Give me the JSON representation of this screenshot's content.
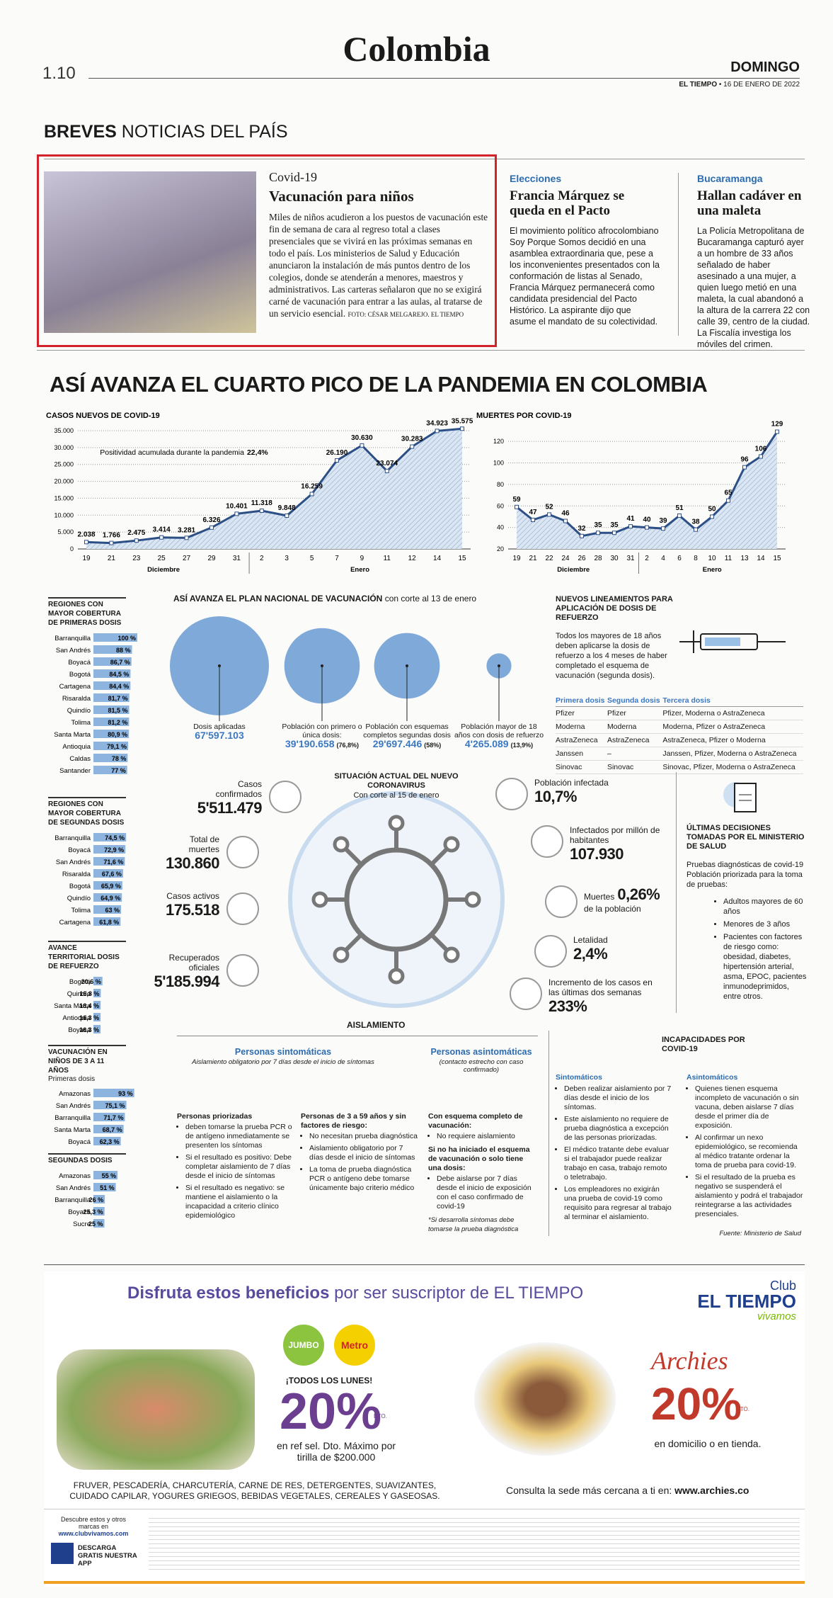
{
  "header": {
    "page": "1.10",
    "section": "Colombia",
    "day": "DOMINGO",
    "paper": "EL TIEMPO",
    "date": "16 DE ENERO DE 2022"
  },
  "breves": {
    "label": "BREVES",
    "sub": "NOTICIAS DEL PAÍS"
  },
  "briefs": [
    {
      "kicker": "Covid-19",
      "title": "Vacunación para niños",
      "body": "Miles de niños acudieron a los puestos de vacunación este fin de semana de cara al regreso total a clases presenciales que se vivirá en las próximas semanas en todo el país. Los ministerios de Salud y Educación anunciaron la instalación de más puntos dentro de los colegios, donde se atenderán a menores, maestros y administrativos. Las carteras señalaron que no se exigirá carné de vacunación para entrar a las aulas, al tratarse de un servicio esencial.",
      "credit": "FOTO: CÉSAR MELGAREJO. EL TIEMPO"
    },
    {
      "kicker": "Elecciones",
      "title": "Francia Márquez se queda en el Pacto",
      "body": "El movimiento político afrocolombiano Soy Porque Somos decidió en una asamblea extraordinaria que, pese a los inconvenientes presentados con la conformación de listas al Senado, Francia Márquez permanecerá como candidata presidencial del Pacto Histórico. La aspirante dijo que asume el mandato de su colectividad."
    },
    {
      "kicker": "Bucaramanga",
      "title": "Hallan cadáver en una maleta",
      "body": "La Policía Metropolitana de Bucaramanga capturó ayer a un hombre de 33 años señalado de haber asesinado a una mujer, a quien luego metió en una maleta, la cual abandonó a la altura de la carrera 22 con calle 39, centro de la ciudad. La Fiscalía investiga los móviles del crimen."
    }
  ],
  "infographic": {
    "title": "ASÍ AVANZA EL CUARTO PICO DE LA PANDEMIA EN COLOMBIA"
  },
  "chart_data": [
    {
      "type": "line",
      "title": "CASOS NUEVOS DE COVID-19",
      "color": "#2c4f86",
      "categories": [
        "19",
        "21",
        "23",
        "25",
        "27",
        "29",
        "31",
        "2",
        "3",
        "5",
        "7",
        "9",
        "11",
        "12",
        "14",
        "15"
      ],
      "month_labels": [
        "Diciembre",
        "Enero"
      ],
      "values": [
        2038,
        1766,
        2475,
        3414,
        3281,
        6326,
        10401,
        11318,
        9848,
        16259,
        26190,
        30630,
        23074,
        30283,
        34923,
        35575
      ],
      "value_labels": [
        "2.038",
        "1.766",
        "2.475",
        "3.414",
        "3.281",
        "6.326",
        "10.401",
        "11.318",
        "9.848",
        "16.259",
        "26.190",
        "30.630",
        "23.074",
        "30.283",
        "34.923",
        "35.575"
      ],
      "ylim": [
        0,
        35000
      ],
      "yticks": [
        0,
        {
          "value": 5000,
          "label": "5.000"
        },
        {
          "value": 10000,
          "label": "10.000"
        },
        {
          "value": 15000,
          "label": "15.000"
        },
        {
          "value": 20000,
          "label": "20.000"
        },
        {
          "value": 25000,
          "label": "25.000"
        },
        {
          "value": 30000,
          "label": "30.000"
        },
        {
          "value": 35000,
          "label": "35.000"
        }
      ],
      "grid": true,
      "annotation": "Positividad acumulada durante la pandemia",
      "annotation_value": "22,4%"
    },
    {
      "type": "line",
      "title": "MUERTES POR COVID-19",
      "color": "#2c4f86",
      "categories": [
        "19",
        "21",
        "22",
        "24",
        "26",
        "28",
        "30",
        "31",
        "2",
        "4",
        "6",
        "8",
        "10",
        "11",
        "13",
        "14",
        "15"
      ],
      "month_labels": [
        "Diciembre",
        "Enero"
      ],
      "values": [
        59,
        47,
        52,
        46,
        32,
        35,
        35,
        41,
        40,
        39,
        51,
        38,
        50,
        65,
        96,
        106,
        129
      ],
      "ylim": [
        20,
        130
      ],
      "yticks": [
        20,
        40,
        60,
        80,
        100,
        120
      ],
      "grid": true
    }
  ],
  "coverage": [
    {
      "title": "REGIONES CON MAYOR COBERTURA DE PRIMERAS DOSIS",
      "rows": [
        {
          "name": "Barranquilla",
          "value": 100,
          "label": "100 %"
        },
        {
          "name": "San Andrés",
          "value": 88,
          "label": "88 %"
        },
        {
          "name": "Boyacá",
          "value": 86.7,
          "label": "86,7 %"
        },
        {
          "name": "Bogotá",
          "value": 84.5,
          "label": "84,5 %"
        },
        {
          "name": "Cartagena",
          "value": 84.4,
          "label": "84,4 %"
        },
        {
          "name": "Risaralda",
          "value": 81.7,
          "label": "81,7 %"
        },
        {
          "name": "Quindío",
          "value": 81.5,
          "label": "81,5 %"
        },
        {
          "name": "Tolima",
          "value": 81.2,
          "label": "81,2 %"
        },
        {
          "name": "Santa Marta",
          "value": 80.9,
          "label": "80,9 %"
        },
        {
          "name": "Antioquia",
          "value": 79.1,
          "label": "79,1 %"
        },
        {
          "name": "Caldas",
          "value": 78,
          "label": "78 %"
        },
        {
          "name": "Santander",
          "value": 77,
          "label": "77 %"
        }
      ]
    },
    {
      "title": "REGIONES CON MAYOR COBERTURA DE SEGUNDAS DOSIS",
      "rows": [
        {
          "name": "Barranquilla",
          "value": 74.5,
          "label": "74,5 %"
        },
        {
          "name": "Boyacá",
          "value": 72.9,
          "label": "72,9 %"
        },
        {
          "name": "San Andrés",
          "value": 71.6,
          "label": "71,6 %"
        },
        {
          "name": "Risaralda",
          "value": 67.6,
          "label": "67,6 %"
        },
        {
          "name": "Bogotá",
          "value": 65.9,
          "label": "65,9 %"
        },
        {
          "name": "Quindío",
          "value": 64.9,
          "label": "64,9 %"
        },
        {
          "name": "Tolima",
          "value": 63,
          "label": "63 %"
        },
        {
          "name": "Cartagena",
          "value": 61.8,
          "label": "61,8 %"
        }
      ]
    },
    {
      "title": "AVANCE TERRITORIAL DOSIS DE REFUERZO",
      "rows": [
        {
          "name": "Bogotá",
          "value": 20.6,
          "label": "20,6 %"
        },
        {
          "name": "Quindío",
          "value": 16.8,
          "label": "16,8 %"
        },
        {
          "name": "Santa Marta",
          "value": 16.4,
          "label": "16,4 %"
        },
        {
          "name": "Antioquia",
          "value": 16.3,
          "label": "16,3 %"
        },
        {
          "name": "Boyacá",
          "value": 16.3,
          "label": "16,3 %"
        }
      ]
    },
    {
      "title": "VACUNACIÓN EN NIÑOS DE 3 A 11 AÑOS",
      "subtitle": "Primeras dosis",
      "rows": [
        {
          "name": "Amazonas",
          "value": 93,
          "label": "93 %"
        },
        {
          "name": "San Andrés",
          "value": 75.1,
          "label": "75,1 %"
        },
        {
          "name": "Barranquilla",
          "value": 71.7,
          "label": "71,7 %"
        },
        {
          "name": "Santa Marta",
          "value": 68.7,
          "label": "68,7 %"
        },
        {
          "name": "Boyacá",
          "value": 62.3,
          "label": "62,3 %"
        }
      ]
    },
    {
      "title": "SEGUNDAS DOSIS",
      "rows": [
        {
          "name": "Amazonas",
          "value": 55,
          "label": "55 %"
        },
        {
          "name": "San Andrés",
          "value": 51,
          "label": "51 %"
        },
        {
          "name": "Barranquilla",
          "value": 26,
          "label": "26 %"
        },
        {
          "name": "Boyacá",
          "value": 25.3,
          "label": "25,3 %"
        },
        {
          "name": "Sucre",
          "value": 25,
          "label": "25 %"
        }
      ]
    }
  ],
  "plan": {
    "title": "ASÍ AVANZA EL PLAN NACIONAL DE VACUNACIÓN",
    "subtitle": "con corte al 13 de enero",
    "bubbles": [
      {
        "label": "Dosis aplicadas",
        "value": 67597103,
        "value_label": "67'597.103"
      },
      {
        "label": "Población con primero o única dosis:",
        "value": 39190658,
        "value_label": "39'190.658",
        "pct": "(76,8%)"
      },
      {
        "label": "Población con esquemas completos segundas dosis",
        "value": 29697446,
        "value_label": "29'697.446",
        "pct": "(58%)"
      },
      {
        "label": "Población mayor de 18 años con dosis de refuerzo",
        "value": 4265089,
        "value_label": "4'265.089",
        "pct": "(13,9%)"
      }
    ]
  },
  "booster": {
    "title": "NUEVOS LINEAMIENTOS PARA APLICACIÓN DE DOSIS DE REFUERZO",
    "text": "Todos los mayores de 18 años deben aplicarse la dosis de refuerzo a los 4 meses de haber completado el esquema de vacunación (segunda dosis).",
    "columns": [
      "Primera dosis",
      "Segunda dosis",
      "Tercera dosis"
    ],
    "rows": [
      [
        "Pfizer",
        "Pfizer",
        "Pfizer, Moderna o AstraZeneca"
      ],
      [
        "Moderna",
        "Moderna",
        "Moderna, Pfizer o AstraZeneca"
      ],
      [
        "AstraZeneca",
        "AstraZeneca",
        "AstraZeneca, Pfizer o Moderna"
      ],
      [
        "Janssen",
        "–",
        "Janssen, Pfizer, Moderna o AstraZeneca"
      ],
      [
        "Sinovac",
        "Sinovac",
        "Sinovac, Pfizer, Moderna o AstraZeneca"
      ]
    ]
  },
  "situation": {
    "title": "SITUACIÓN ACTUAL DEL NUEVO CORONAVIRUS",
    "subtitle": "Con corte al 15 de enero",
    "left": [
      {
        "label": "Casos confirmados",
        "value": "5'511.479"
      },
      {
        "label": "Total de muertes",
        "value": "130.860"
      },
      {
        "label": "Casos activos",
        "value": "175.518"
      },
      {
        "label": "Recuperados oficiales",
        "value": "5'185.994"
      }
    ],
    "right": [
      {
        "label": "Población infectada",
        "value": "10,7%"
      },
      {
        "label": "Infectados por millón de habitantes",
        "value": "107.930"
      },
      {
        "label": "de la población",
        "value": "0,26%",
        "prefix": "Muertes"
      },
      {
        "label": "Letalidad",
        "value": "2,4%"
      },
      {
        "label": "Incremento de los casos en las últimas dos semanas",
        "value": "233%"
      }
    ]
  },
  "ministry": {
    "title": "ÚLTIMAS DECISIONES TOMADAS POR EL MINISTERIO DE SALUD",
    "text": "Pruebas diagnósticas de covid-19 Población priorizada para la toma de pruebas:",
    "items": [
      "Adultos mayores de 60 años",
      "Menores de 3 años",
      "Pacientes con factores de riesgo como: obesidad, diabetes, hipertensión arterial, asma, EPOC, pacientes inmunodeprimidos, entre otros."
    ]
  },
  "isolation": {
    "title": "AISLAMIENTO",
    "symptomatic": "Personas sintomáticas",
    "symptomatic_note": "Aislamiento obligatorio por 7 días desde el inicio de síntomas",
    "asymptomatic": "Personas asintomáticas",
    "asymptomatic_note": "(contacto estrecho con caso confirmado)",
    "columns": [
      [
        {
          "title": "Personas priorizadas",
          "items": [
            "deben tomarse la prueba PCR o de antígeno inmediatamente se presenten los síntomas",
            "Si el resultado es positivo: Debe completar aislamiento de 7 días desde el inicio de síntomas",
            "Si el resultado es negativo: se mantiene el aislamiento o la incapacidad a criterio clínico epidemiológico"
          ]
        }
      ],
      [
        {
          "title": "Personas de 3 a 59 años y sin factores de riesgo:",
          "items": [
            "No necesitan prueba diagnóstica",
            "Aislamiento obligatorio por 7 días desde el inicio de síntomas",
            "La toma de prueba diagnóstica PCR o antígeno debe tomarse únicamente bajo criterio médico"
          ]
        }
      ],
      [
        {
          "title": "Con esquema completo de vacunación:",
          "items": [
            "No requiere aislamiento"
          ]
        },
        {
          "title": "Si no ha iniciado el esquema de vacunación o solo tiene una dosis:",
          "items": [
            "Debe aislarse por 7 días desde el inicio de exposición con el caso confirmado de covid-19"
          ],
          "note": "*Si desarrolla síntomas debe tomarse la prueba diagnóstica"
        }
      ]
    ]
  },
  "disability": {
    "title": "INCAPACIDADES POR COVID-19",
    "columns": [
      {
        "title": "Sintomáticos",
        "items": [
          "Deben realizar aislamiento por 7 días desde el inicio de los síntomas.",
          "Este aislamiento no requiere de prueba diagnóstica a excepción de las personas priorizadas.",
          "El médico tratante debe evaluar si el trabajador puede realizar trabajo en casa, trabajo remoto o teletrabajo.",
          "Los empleadores no exigirán una prueba de covid-19 como requisito para regresar al trabajo al terminar el aislamiento."
        ]
      },
      {
        "title": "Asintomáticos",
        "items": [
          "Quienes tienen esquema incompleto de vacunación o sin vacuna, deben aislarse 7 días desde el primer día de exposición.",
          "Al confirmar un nexo epidemiológico, se recomienda al médico tratante ordenar la toma de prueba para covid-19.",
          "Si el resultado de la prueba es negativo se suspenderá el aislamiento y podrá el trabajador reintegrarse a las actividades presenciales."
        ]
      }
    ],
    "source": "Fuente: Ministerio de Salud"
  },
  "ad": {
    "heading": "Disfruta estos beneficios",
    "heading_rest": "por ser suscriptor de EL TIEMPO",
    "club": "Club",
    "club_brand": "EL TIEMPO",
    "club_tag": "vivamos",
    "jumbo": "JUMBO",
    "metro": "Metro",
    "mondays": "¡TODOS LOS LUNES!",
    "discount": "20%",
    "dto": "DTO.",
    "jumbo_terms": "en ref sel. Dto. Máximo por tirilla de $200.000",
    "archies": "Archies",
    "archies_discount": "20%",
    "archies_dto": "DTO.",
    "archies_terms": "en domicilio o en tienda.",
    "categories": "FRUVER, PESCADERÍA, CHARCUTERÍA, CARNE DE RES, DETERGENTES, SUAVIZANTES, CUIDADO CAPILAR, YOGURES GRIEGOS, BEBIDAS VEGETALES, CEREALES Y GASEOSAS.",
    "archies_site_text": "Consulta la sede más cercana a ti en:",
    "archies_site": "www.archies.co",
    "discover": "Descubre estos y otros marcas en",
    "discover_site": "www.clubvivamos.com",
    "app": "DESCARGA GRATIS NUESTRA APP"
  }
}
